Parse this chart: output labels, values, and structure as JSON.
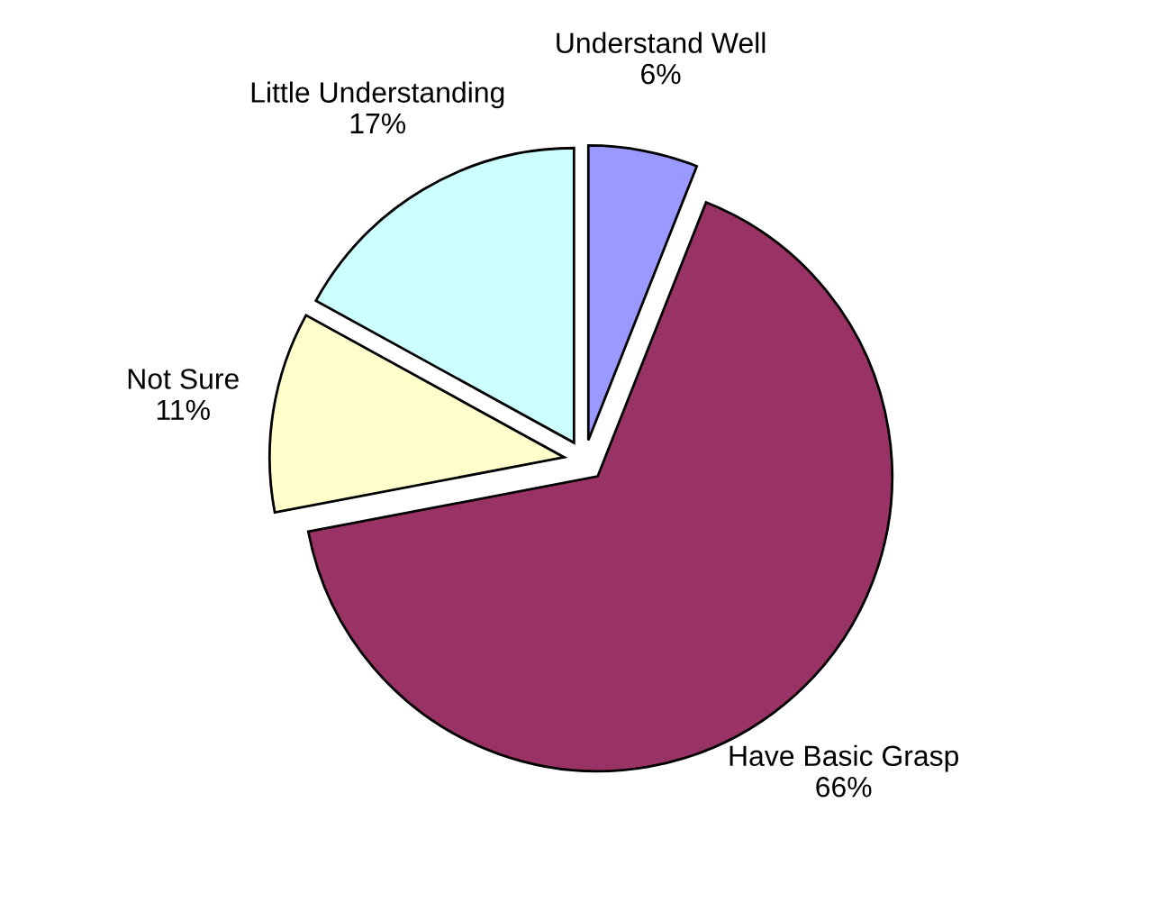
{
  "chart_data": {
    "type": "pie",
    "categories": [
      "Understand Well",
      "Have Basic Grasp",
      "Not Sure",
      "Little Understanding"
    ],
    "values": [
      6,
      66,
      11,
      17
    ],
    "value_labels": [
      "6%",
      "66%",
      "11%",
      "17%"
    ],
    "colors": [
      "#9999ff",
      "#993366",
      "#ffffcc",
      "#ccffff"
    ],
    "legend": false
  }
}
